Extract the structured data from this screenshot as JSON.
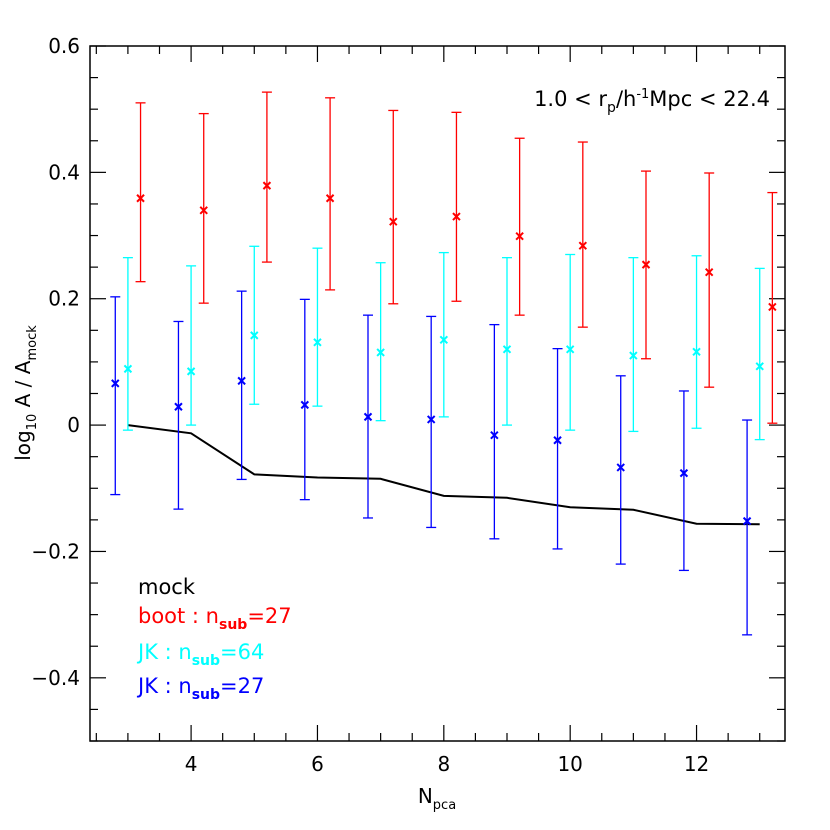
{
  "chart_data": {
    "type": "scatter",
    "xlabel": "N",
    "xlabel_sub": "pca",
    "ylabel": "log",
    "ylabel_sub1": "10",
    "ylabel_mid": " A / A",
    "ylabel_sub2": "mock",
    "annotation": {
      "pre": "1.0 < r",
      "sub1": "p",
      "mid1": "/h",
      "sup": "-1",
      "post": "Mpc < 22.4"
    },
    "xlim": [
      2.4,
      13.4
    ],
    "ylim": [
      -0.5,
      0.6
    ],
    "x_ticks": [
      4,
      6,
      8,
      10,
      12
    ],
    "x_tick_labels": [
      "4",
      "6",
      "8",
      "10",
      "12"
    ],
    "y_ticks": [
      -0.4,
      -0.2,
      0,
      0.2,
      0.4,
      0.6
    ],
    "y_tick_labels": [
      "−0.4",
      "−0.2",
      "0",
      "0.2",
      "0.4",
      "0.6"
    ],
    "series": [
      {
        "name": "mock",
        "label_main": "mock",
        "label_sub": "",
        "label_eq": "",
        "color": "#000000",
        "style": "line",
        "x": [
          3,
          4,
          5,
          6,
          7,
          8,
          9,
          10,
          11,
          12,
          13
        ],
        "y": [
          0.0,
          -0.013,
          -0.078,
          -0.083,
          -0.085,
          -0.112,
          -0.115,
          -0.13,
          -0.134,
          -0.156,
          -0.157
        ]
      },
      {
        "name": "boot",
        "label_main": "boot : n",
        "label_sub": "sub",
        "label_eq": "=27",
        "color": "#ff0000",
        "style": "errorbar",
        "x": [
          3.2,
          4.2,
          5.2,
          6.2,
          7.2,
          8.2,
          9.2,
          10.2,
          11.2,
          12.2,
          13.2
        ],
        "y": [
          0.359,
          0.34,
          0.379,
          0.359,
          0.322,
          0.33,
          0.299,
          0.284,
          0.254,
          0.242,
          0.187
        ],
        "y_low": [
          0.227,
          0.193,
          0.258,
          0.214,
          0.192,
          0.196,
          0.174,
          0.155,
          0.105,
          0.06,
          0.003
        ],
        "y_high": [
          0.51,
          0.493,
          0.527,
          0.518,
          0.498,
          0.495,
          0.454,
          0.448,
          0.402,
          0.399,
          0.368
        ]
      },
      {
        "name": "JK64",
        "label_main": "JK : n",
        "label_sub": "sub",
        "label_eq": "=64",
        "color": "#00ffff",
        "style": "errorbar",
        "x": [
          3.0,
          4.0,
          5.0,
          6.0,
          7.0,
          8.0,
          9.0,
          10.0,
          11.0,
          12.0,
          13.0
        ],
        "y": [
          0.089,
          0.085,
          0.142,
          0.131,
          0.115,
          0.135,
          0.12,
          0.12,
          0.11,
          0.116,
          0.093
        ],
        "y_low": [
          -0.008,
          0.0,
          0.033,
          0.03,
          0.007,
          0.013,
          0.0,
          -0.008,
          -0.01,
          -0.005,
          -0.023
        ],
        "y_high": [
          0.265,
          0.252,
          0.283,
          0.28,
          0.257,
          0.273,
          0.265,
          0.27,
          0.265,
          0.268,
          0.248
        ]
      },
      {
        "name": "JK27",
        "label_main": "JK : n",
        "label_sub": "sub",
        "label_eq": "=27",
        "color": "#0000ff",
        "style": "errorbar",
        "x": [
          2.8,
          3.8,
          4.8,
          5.8,
          6.8,
          7.8,
          8.8,
          9.8,
          10.8,
          11.8,
          12.8
        ],
        "y": [
          0.066,
          0.029,
          0.07,
          0.032,
          0.013,
          0.009,
          -0.016,
          -0.024,
          -0.067,
          -0.076,
          -0.152
        ],
        "y_low": [
          -0.11,
          -0.133,
          -0.086,
          -0.118,
          -0.147,
          -0.162,
          -0.18,
          -0.196,
          -0.22,
          -0.23,
          -0.332
        ],
        "y_high": [
          0.203,
          0.164,
          0.212,
          0.199,
          0.174,
          0.172,
          0.159,
          0.121,
          0.078,
          0.054,
          0.008
        ]
      }
    ]
  }
}
